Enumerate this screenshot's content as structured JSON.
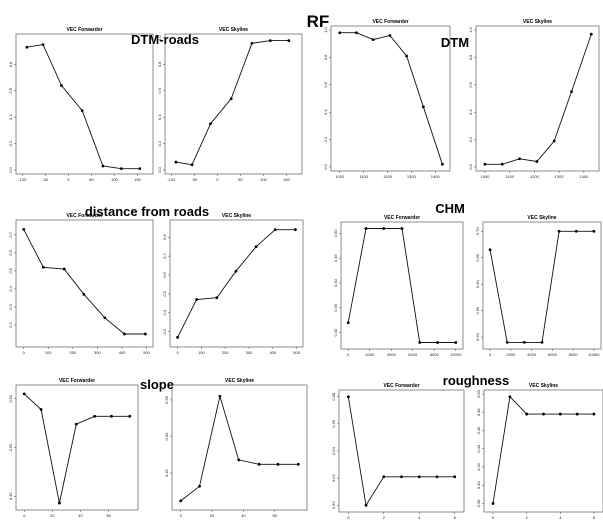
{
  "main_title": "RF",
  "chart_data": [
    {
      "group": "DTM-roads",
      "panels": [
        {
          "type": "line",
          "title": "VEC Forwarder",
          "x": [
            -90,
            -55,
            -15,
            30,
            75,
            115,
            155
          ],
          "y": [
            0.93,
            0.95,
            0.64,
            0.45,
            0.03,
            0.01,
            0.01
          ],
          "xlim": [
            -105,
            175
          ],
          "ylim": [
            0.0,
            1.0
          ],
          "xticks": [
            "-100",
            "-50",
            "0",
            "50",
            "100",
            "150"
          ],
          "yticks": [
            "0.0",
            "0.2",
            "0.4",
            "0.6",
            "0.8"
          ]
        },
        {
          "type": "line",
          "title": "VEC Skyline",
          "x": [
            -90,
            -55,
            -15,
            30,
            75,
            115,
            155
          ],
          "y": [
            0.06,
            0.04,
            0.35,
            0.54,
            0.96,
            0.98,
            0.98
          ],
          "xlim": [
            -105,
            175
          ],
          "ylim": [
            0.0,
            1.0
          ],
          "xticks": [
            "-100",
            "-50",
            "0",
            "50",
            "100",
            "150"
          ],
          "yticks": [
            "0.0",
            "0.2",
            "0.4",
            "0.6",
            "0.8",
            "1.0"
          ]
        }
      ]
    },
    {
      "group": "DTM",
      "panels": [
        {
          "type": "line",
          "title": "VEC Forwarder",
          "x": [
            1000,
            1070,
            1140,
            1210,
            1280,
            1350,
            1430
          ],
          "y": [
            0.98,
            0.98,
            0.93,
            0.96,
            0.81,
            0.44,
            0.02
          ],
          "xlim": [
            980,
            1445
          ],
          "ylim": [
            0.0,
            1.0
          ],
          "xticks": [
            "1000",
            "1100",
            "1200",
            "1300",
            "1400"
          ],
          "yticks": [
            "0.0",
            "0.2",
            "0.4",
            "0.6",
            "0.8",
            "1.0"
          ]
        },
        {
          "type": "line",
          "title": "VEC Skyline",
          "x": [
            1000,
            1070,
            1140,
            1210,
            1280,
            1350,
            1430
          ],
          "y": [
            0.02,
            0.02,
            0.06,
            0.04,
            0.19,
            0.55,
            0.97
          ],
          "xlim": [
            980,
            1445
          ],
          "ylim": [
            0.0,
            1.0
          ],
          "xticks": [
            "1000",
            "1100",
            "1200",
            "1300",
            "1400"
          ],
          "yticks": [
            "0.0",
            "0.2",
            "0.4",
            "0.6",
            "0.8",
            "1.0"
          ]
        }
      ]
    },
    {
      "group": "distance from roads",
      "panels": [
        {
          "type": "line",
          "title": "VEC Forwarder",
          "x": [
            0,
            80,
            165,
            245,
            330,
            410,
            495
          ],
          "y": [
            0.73,
            0.52,
            0.51,
            0.37,
            0.24,
            0.15,
            0.15
          ],
          "xlim": [
            -15,
            510
          ],
          "ylim": [
            0.1,
            0.76
          ],
          "xticks": [
            "0",
            "100",
            "200",
            "300",
            "400",
            "500"
          ],
          "yticks": [
            "0.2",
            "0.3",
            "0.4",
            "0.5",
            "0.6",
            "0.7"
          ]
        },
        {
          "type": "line",
          "title": "VEC Skyline",
          "x": [
            0,
            80,
            165,
            245,
            330,
            410,
            495
          ],
          "y": [
            0.27,
            0.47,
            0.48,
            0.62,
            0.75,
            0.84,
            0.84
          ],
          "xlim": [
            -15,
            510
          ],
          "ylim": [
            0.24,
            0.87
          ],
          "xticks": [
            "0",
            "100",
            "200",
            "300",
            "400",
            "500"
          ],
          "yticks": [
            "0.3",
            "0.4",
            "0.5",
            "0.6",
            "0.7",
            "0.8"
          ]
        }
      ]
    },
    {
      "group": "CHM",
      "panels": [
        {
          "type": "line",
          "title": "VEC Forwarder",
          "x": [
            0,
            1650,
            3300,
            5000,
            6650,
            8300,
            10000
          ],
          "y": [
            0.32,
            0.51,
            0.51,
            0.51,
            0.28,
            0.28,
            0.28
          ],
          "xlim": [
            -300,
            10300
          ],
          "ylim": [
            0.275,
            0.515
          ],
          "xticks": [
            "0",
            "2000",
            "4000",
            "6000",
            "8000",
            "10000"
          ],
          "yticks": [
            "0.30",
            "0.35",
            "0.40",
            "0.45",
            "0.50"
          ]
        },
        {
          "type": "line",
          "title": "VEC Skyline",
          "x": [
            0,
            1650,
            3300,
            5000,
            6650,
            8300,
            10000
          ],
          "y": [
            0.665,
            0.49,
            0.49,
            0.49,
            0.7,
            0.7,
            0.7
          ],
          "xlim": [
            -300,
            10300
          ],
          "ylim": [
            0.485,
            0.71
          ],
          "xticks": [
            "0",
            "2000",
            "4000",
            "6000",
            "8000",
            "10000"
          ],
          "yticks": [
            "0.50",
            "0.55",
            "0.60",
            "0.65",
            "0.70"
          ]
        }
      ]
    },
    {
      "group": "slope",
      "panels": [
        {
          "type": "line",
          "title": "VEC Forwarder",
          "x": [
            0,
            12,
            25,
            37,
            50,
            62,
            75
          ],
          "y": [
            0.555,
            0.539,
            0.443,
            0.524,
            0.532,
            0.532,
            0.532
          ],
          "xlim": [
            -3,
            78
          ],
          "ylim": [
            0.44,
            0.56
          ],
          "xticks": [
            "0",
            "20",
            "40",
            "60"
          ],
          "yticks": [
            "0.45",
            "0.50",
            "0.55"
          ]
        },
        {
          "type": "line",
          "title": "VEC Skyline",
          "x": [
            0,
            12,
            25,
            37,
            50,
            62,
            75
          ],
          "y": [
            0.412,
            0.432,
            0.555,
            0.468,
            0.462,
            0.462,
            0.462
          ],
          "xlim": [
            -3,
            78
          ],
          "ylim": [
            0.405,
            0.565
          ],
          "xticks": [
            "0",
            "20",
            "40",
            "60"
          ],
          "yticks": [
            "0.45",
            "0.50",
            "0.55"
          ]
        }
      ]
    },
    {
      "group": "roughness",
      "panels": [
        {
          "type": "line",
          "title": "VEC Forwarder",
          "x": [
            0,
            1,
            2,
            3,
            4,
            5,
            6
          ],
          "y": [
            0.58,
            0.5,
            0.521,
            0.521,
            0.521,
            0.521,
            0.521
          ],
          "xlim": [
            -0.3,
            6.3
          ],
          "ylim": [
            0.498,
            0.582
          ],
          "xticks": [
            "0",
            "2",
            "4",
            "6"
          ],
          "yticks": [
            "0.50",
            "0.52",
            "0.54",
            "0.56",
            "0.58",
            "0.60"
          ]
        },
        {
          "type": "line",
          "title": "VEC Skyline",
          "x": [
            0,
            1,
            2,
            3,
            4,
            5,
            6
          ],
          "y": [
            0.38,
            0.497,
            0.478,
            0.478,
            0.478,
            0.478,
            0.478
          ],
          "xlim": [
            -0.3,
            6.3
          ],
          "ylim": [
            0.375,
            0.5
          ],
          "xticks": [
            "0",
            "2",
            "4",
            "6"
          ],
          "yticks": [
            "0.38",
            "0.40",
            "0.42",
            "0.44",
            "0.46",
            "0.48",
            "0.50"
          ]
        }
      ]
    }
  ]
}
